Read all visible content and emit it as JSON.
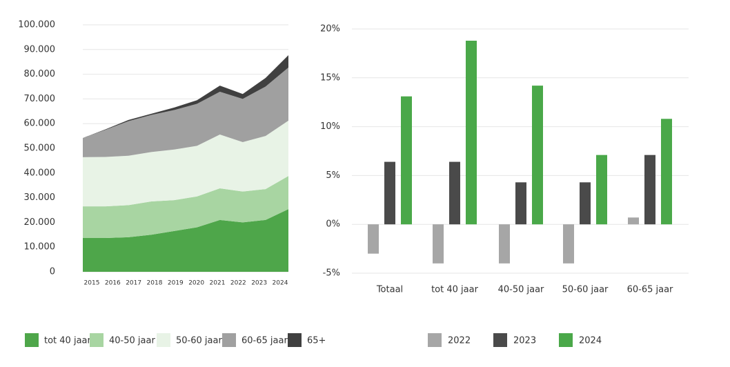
{
  "chart_data": [
    {
      "type": "area",
      "x": [
        2015,
        2016,
        2017,
        2018,
        2019,
        2020,
        2021,
        2022,
        2023,
        2024
      ],
      "series": [
        {
          "name": "tot 40 jaar",
          "color": "#4ea64a",
          "values": [
            13700,
            13700,
            14000,
            15000,
            16500,
            18000,
            21000,
            20000,
            21000,
            25400
          ]
        },
        {
          "name": "40-50 jaar",
          "color": "#a8d5a2",
          "values": [
            12800,
            12800,
            13000,
            13500,
            12500,
            12500,
            12800,
            12500,
            12500,
            13400
          ]
        },
        {
          "name": "50-60 jaar",
          "color": "#e8f3e6",
          "values": [
            19900,
            20000,
            20000,
            20000,
            20500,
            20500,
            21800,
            20000,
            21500,
            22400
          ]
        },
        {
          "name": "60-65 jaar",
          "color": "#a0a0a0",
          "values": [
            7800,
            11000,
            14000,
            15000,
            16000,
            17000,
            17300,
            17500,
            20000,
            21500
          ]
        },
        {
          "name": "65+",
          "color": "#404040",
          "values": [
            0,
            200,
            500,
            500,
            1000,
            1500,
            2500,
            2000,
            3500,
            5000
          ]
        }
      ],
      "stacked": true,
      "ylim": [
        0,
        100000
      ],
      "yticks": [
        {
          "value": 0,
          "label": "0"
        },
        {
          "value": 10000,
          "label": "10.000"
        },
        {
          "value": 20000,
          "label": "20.000"
        },
        {
          "value": 30000,
          "label": "30.000"
        },
        {
          "value": 40000,
          "label": "40.000"
        },
        {
          "value": 50000,
          "label": "50.000"
        },
        {
          "value": 60000,
          "label": "60.000"
        },
        {
          "value": 70000,
          "label": "70.000"
        },
        {
          "value": 80000,
          "label": "80.000"
        },
        {
          "value": 90000,
          "label": "90.000"
        },
        {
          "value": 100000,
          "label": "100.000"
        }
      ],
      "grid": true
    },
    {
      "type": "bar",
      "categories": [
        "Totaal",
        "tot 40 jaar",
        "40-50 jaar",
        "50-60 jaar",
        "60-65 jaar"
      ],
      "series": [
        {
          "name": "2022",
          "color": "#a6a6a6",
          "values": [
            -3,
            -4,
            -4,
            -4,
            0.7
          ]
        },
        {
          "name": "2023",
          "color": "#4a4a4a",
          "values": [
            6.4,
            6.4,
            4.3,
            4.3,
            7.1
          ]
        },
        {
          "name": "2024",
          "color": "#4aa849",
          "values": [
            13.1,
            18.8,
            14.2,
            7.1,
            10.8
          ]
        }
      ],
      "ylim": [
        -5,
        20
      ],
      "yticks": [
        {
          "value": -5,
          "label": "-5%"
        },
        {
          "value": 0,
          "label": "0%"
        },
        {
          "value": 5,
          "label": "5%"
        },
        {
          "value": 10,
          "label": "10%"
        },
        {
          "value": 15,
          "label": "15%"
        },
        {
          "value": 20,
          "label": "20%"
        }
      ],
      "grid": true
    }
  ]
}
